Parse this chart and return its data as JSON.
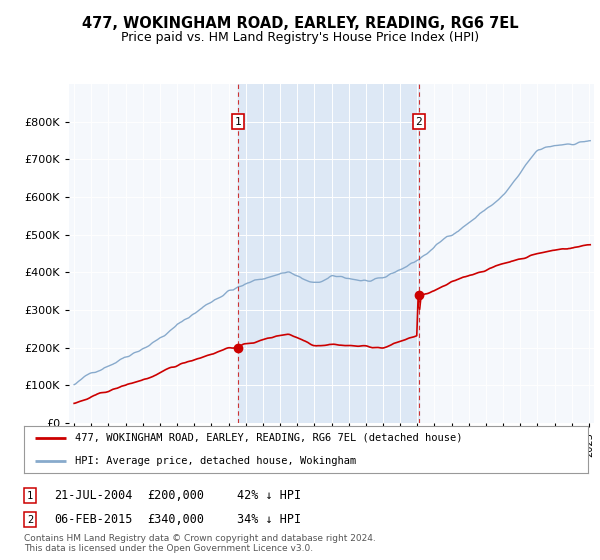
{
  "title": "477, WOKINGHAM ROAD, EARLEY, READING, RG6 7EL",
  "subtitle": "Price paid vs. HM Land Registry's House Price Index (HPI)",
  "legend_line1": "477, WOKINGHAM ROAD, EARLEY, READING, RG6 7EL (detached house)",
  "legend_line2": "HPI: Average price, detached house, Wokingham",
  "sale1_date": "21-JUL-2004",
  "sale1_price": 200000,
  "sale1_label": "42% ↓ HPI",
  "sale1_x": 2004.55,
  "sale2_date": "06-FEB-2015",
  "sale2_price": 340000,
  "sale2_label": "34% ↓ HPI",
  "sale2_x": 2015.08,
  "footer": "Contains HM Land Registry data © Crown copyright and database right 2024.\nThis data is licensed under the Open Government Licence v3.0.",
  "ylim": [
    0,
    900000
  ],
  "yticks": [
    0,
    100000,
    200000,
    300000,
    400000,
    500000,
    600000,
    700000,
    800000
  ],
  "red_color": "#cc0000",
  "blue_color": "#88aacc",
  "shade_color": "#dde8f5",
  "bg_color": "#f5f8fc"
}
